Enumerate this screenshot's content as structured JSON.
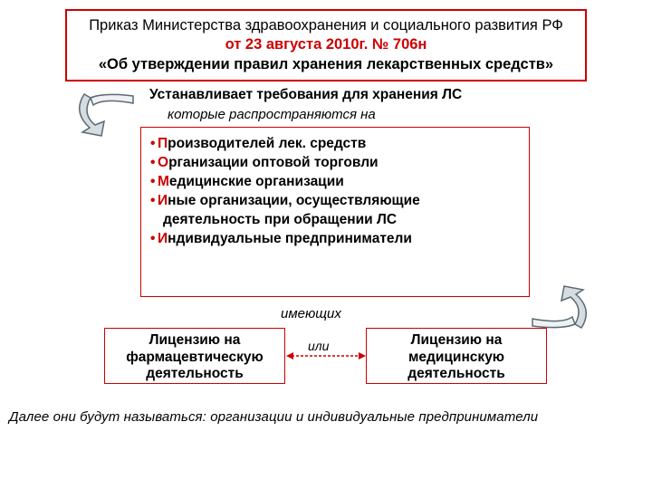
{
  "colors": {
    "red": "#cc0000",
    "black": "#000000",
    "gray_stroke": "#5b6a72",
    "gray_fill": "#d6dde1"
  },
  "title": {
    "line1": "Приказ Министерства здравоохранения и социального развития РФ",
    "line2": "от 23 августа 2010г. № 706н",
    "line3": "«Об утверждении правил хранения лекарственных средств»",
    "border_color": "#cc0000",
    "line2_color": "#cc0000",
    "fontsize": 16.5
  },
  "subtitle": {
    "text": "Устанавливает  требования для хранения ЛС",
    "fontsize": 15.5
  },
  "subtitle2": {
    "text": "которые распространяются  на",
    "fontsize": 15
  },
  "list": {
    "border_color": "#cc0000",
    "bullet_color": "#cc0000",
    "first_letter_color": "#cc0000",
    "fontsize": 15.5,
    "items": [
      {
        "first": "П",
        "rest": "роизводителей лек. средств"
      },
      {
        "first": "О",
        "rest": "рганизации оптовой торговли"
      },
      {
        "first": "М",
        "rest": "едицинские организации"
      },
      {
        "first": "И",
        "rest": "ные организации, осуществляющие",
        "cont": "деятельность при обращении ЛС"
      },
      {
        "first": "И",
        "rest": "ндивидуальные предприниматели"
      }
    ]
  },
  "having": {
    "text": "имеющих",
    "fontsize": 15
  },
  "license": {
    "border_color": "#cc0000",
    "left_label": "Лицензию на фармацевтическую деятельность",
    "right_label": "Лицензию на медицинскую деятельность",
    "or_label": "или",
    "fontsize": 15.5
  },
  "connector": {
    "dash_color": "#cc0000"
  },
  "footnote": {
    "text": "Далее они будут называться:  организации и индивидуальные предприниматели",
    "fontsize": 15
  },
  "curved_arrows": {
    "stroke": "#5b6a72",
    "fill": "#d6dde1"
  }
}
